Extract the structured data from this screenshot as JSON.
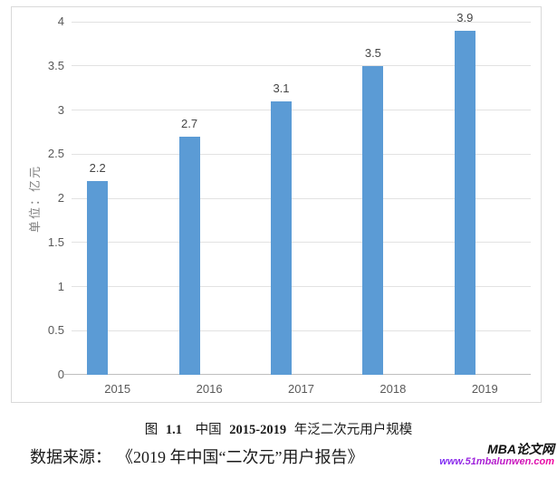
{
  "chart_data": {
    "type": "bar",
    "title": "",
    "categories": [
      "2015",
      "2016",
      "2017",
      "2018",
      "2019"
    ],
    "values": [
      2.2,
      2.7,
      3.1,
      3.5,
      3.9
    ],
    "value_labels": [
      "2.2",
      "2.7",
      "3.1",
      "3.5",
      "3.9"
    ],
    "ylabel": "单位：亿元",
    "xlabel": "",
    "ylim": [
      0,
      4
    ],
    "ytick_step": 0.5,
    "ytick_labels": [
      "0",
      "0.5",
      "1",
      "1.5",
      "2",
      "2.5",
      "3",
      "3.5",
      "4"
    ],
    "grid": true,
    "legend": "none",
    "colors": {
      "bar": "#5b9bd5",
      "gridline": "#e2e2e2",
      "axis_line": "#bfbfbf",
      "tick_text": "#595959",
      "value_text": "#444444",
      "ylabel_text": "#7f7f7f",
      "frame_border": "#d9d9d9"
    }
  },
  "caption": {
    "fig_word": "图",
    "fig_number": "1.1",
    "region": "中国",
    "year_range": "2015-2019",
    "suffix": "年泛二次元用户规模"
  },
  "source": {
    "label": "数据来源：",
    "text": "《2019 年中国“二次元”用户报告》"
  },
  "watermark": {
    "site_name": "MBA论文网",
    "site_url": "www.51mbalunwen.com",
    "url_color_start": "#7b2ff7",
    "url_color_end": "#f1079e"
  }
}
